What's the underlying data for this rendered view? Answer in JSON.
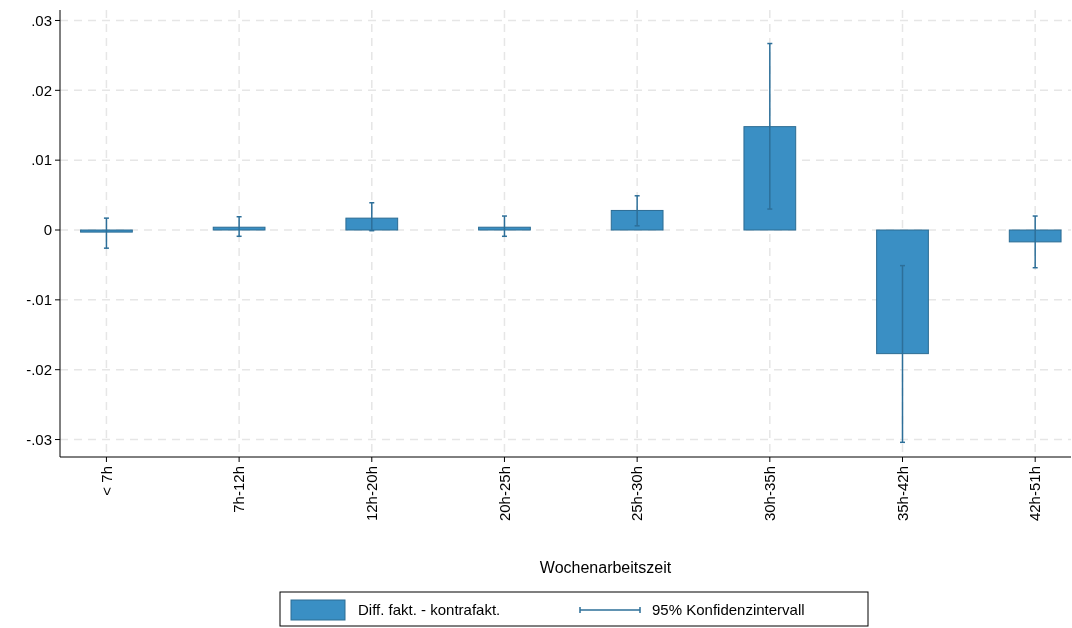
{
  "chart_data": {
    "type": "bar",
    "xlabel": "Wochenarbeitszeit",
    "categories": [
      "< 7h",
      "7h-12h",
      "12h-20h",
      "20h-25h",
      "25h-30h",
      "30h-35h",
      "35h-42h",
      "42h-51h"
    ],
    "series": [
      {
        "name": "Diff. fakt. - kontrafakt.",
        "color": "#3a8fc4",
        "values": [
          -0.0003,
          0.0004,
          0.0017,
          0.0004,
          0.0028,
          0.0148,
          -0.0177,
          -0.0017
        ],
        "errors": [
          [
            -0.0026,
            0.0017
          ],
          [
            -0.0009,
            0.0019
          ],
          [
            -0.0001,
            0.0039
          ],
          [
            -0.0009,
            0.002
          ],
          [
            0.0006,
            0.0049
          ],
          [
            0.003,
            0.0267
          ],
          [
            -0.0304,
            -0.0051
          ],
          [
            -0.0054,
            0.002
          ]
        ]
      }
    ],
    "annotations": [
      "95% Konfidenzintervall"
    ],
    "ylim": [
      -0.0325,
      0.0315
    ],
    "yticks": [
      {
        "value": -0.03,
        "label": "-.03"
      },
      {
        "value": -0.02,
        "label": "-.02"
      },
      {
        "value": -0.01,
        "label": "-.01"
      },
      {
        "value": 0,
        "label": "0"
      },
      {
        "value": 0.01,
        "label": ".01"
      },
      {
        "value": 0.02,
        "label": ".02"
      },
      {
        "value": 0.03,
        "label": ".03"
      }
    ],
    "grid": true,
    "legend": "bottom"
  }
}
